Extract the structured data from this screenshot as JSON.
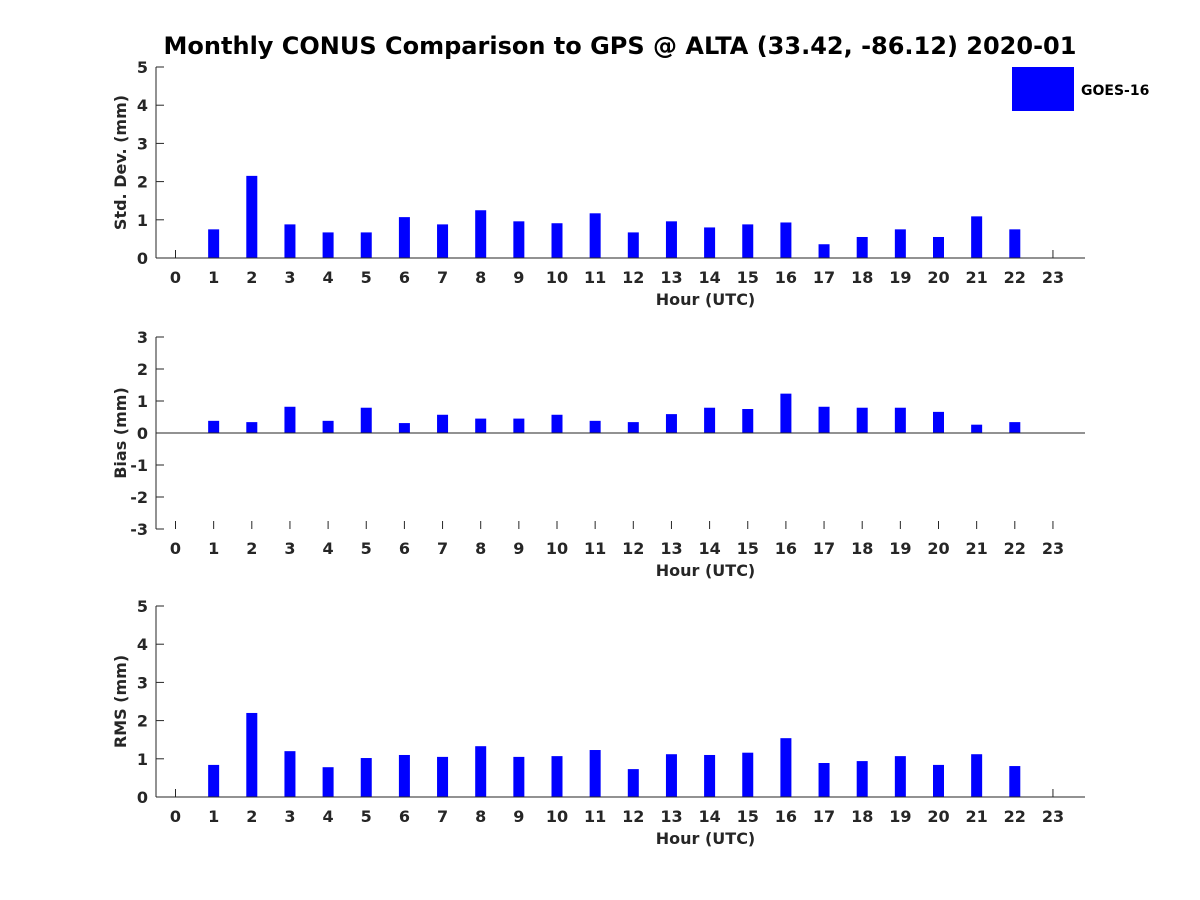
{
  "figure_title": "Monthly CONUS Comparison to GPS @ ALTA (33.42, -86.12) 2020-01",
  "legend": {
    "label": "GOES-16",
    "color": "#0000ff"
  },
  "chart_data": [
    {
      "type": "bar",
      "name": "std-dev",
      "title": "Monthly CONUS Comparison to GPS @ ALTA (33.42, -86.12) 2020-01",
      "xlabel": "Hour (UTC)",
      "ylabel": "Std. Dev. (mm)",
      "ylim": [
        0,
        5
      ],
      "yticks": [
        "0",
        "1",
        "2",
        "3",
        "4",
        "5"
      ],
      "categories": [
        "0",
        "1",
        "2",
        "3",
        "4",
        "5",
        "6",
        "7",
        "8",
        "9",
        "10",
        "11",
        "12",
        "13",
        "14",
        "15",
        "16",
        "17",
        "18",
        "19",
        "20",
        "21",
        "22",
        "23"
      ],
      "series": [
        {
          "name": "GOES-16",
          "values": [
            null,
            0.75,
            2.15,
            0.88,
            0.67,
            0.67,
            1.07,
            0.88,
            1.25,
            0.96,
            0.91,
            1.17,
            0.67,
            0.96,
            0.8,
            0.88,
            0.93,
            0.36,
            0.55,
            0.75,
            0.55,
            1.09,
            0.75,
            null
          ]
        }
      ]
    },
    {
      "type": "bar",
      "name": "bias",
      "title": "",
      "xlabel": "Hour (UTC)",
      "ylabel": "Bias (mm)",
      "ylim": [
        -3,
        3
      ],
      "yticks": [
        "-3",
        "-2",
        "-1",
        "0",
        "1",
        "2",
        "3"
      ],
      "zero_line": true,
      "categories": [
        "0",
        "1",
        "2",
        "3",
        "4",
        "5",
        "6",
        "7",
        "8",
        "9",
        "10",
        "11",
        "12",
        "13",
        "14",
        "15",
        "16",
        "17",
        "18",
        "19",
        "20",
        "21",
        "22",
        "23"
      ],
      "series": [
        {
          "name": "GOES-16",
          "values": [
            null,
            0.38,
            0.34,
            0.82,
            0.38,
            0.79,
            0.31,
            0.57,
            0.45,
            0.45,
            0.57,
            0.38,
            0.34,
            0.59,
            0.79,
            0.75,
            1.23,
            0.82,
            0.79,
            0.79,
            0.66,
            0.26,
            0.34,
            null
          ]
        }
      ]
    },
    {
      "type": "bar",
      "name": "rms",
      "title": "",
      "xlabel": "Hour (UTC)",
      "ylabel": "RMS (mm)",
      "ylim": [
        0,
        5
      ],
      "yticks": [
        "0",
        "1",
        "2",
        "3",
        "4",
        "5"
      ],
      "categories": [
        "0",
        "1",
        "2",
        "3",
        "4",
        "5",
        "6",
        "7",
        "8",
        "9",
        "10",
        "11",
        "12",
        "13",
        "14",
        "15",
        "16",
        "17",
        "18",
        "19",
        "20",
        "21",
        "22",
        "23"
      ],
      "series": [
        {
          "name": "GOES-16",
          "values": [
            null,
            0.84,
            2.2,
            1.2,
            0.78,
            1.02,
            1.1,
            1.05,
            1.33,
            1.05,
            1.07,
            1.23,
            0.73,
            1.12,
            1.1,
            1.16,
            1.54,
            0.89,
            0.94,
            1.07,
            0.84,
            1.12,
            0.81,
            null
          ]
        }
      ]
    }
  ]
}
